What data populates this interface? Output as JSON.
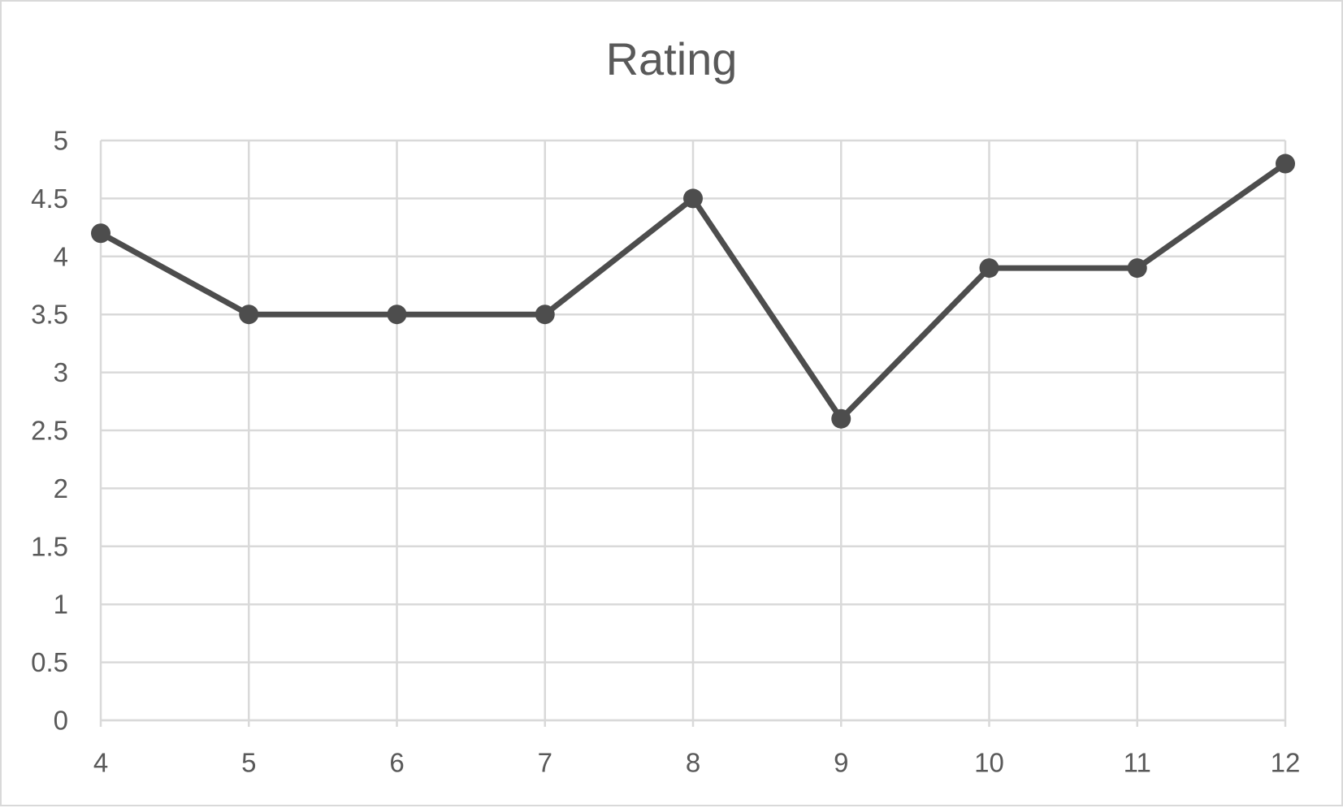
{
  "chart_data": {
    "type": "line",
    "title": "Rating",
    "xlabel": "",
    "ylabel": "",
    "x": [
      4,
      5,
      6,
      7,
      8,
      9,
      10,
      11,
      12
    ],
    "series": [
      {
        "values": [
          4.2,
          3.5,
          3.5,
          3.5,
          4.5,
          2.6,
          3.9,
          3.9,
          4.8
        ]
      }
    ],
    "xlim": [
      4,
      12
    ],
    "ylim": [
      0,
      5
    ],
    "x_ticks": [
      "4",
      "5",
      "6",
      "7",
      "8",
      "9",
      "10",
      "11",
      "12"
    ],
    "y_ticks": [
      "0",
      "0.5",
      "1",
      "1.5",
      "2",
      "2.5",
      "3",
      "3.5",
      "4",
      "4.5",
      "5"
    ],
    "grid": true,
    "legend": "none",
    "colors": {
      "series": "#4d4d4d",
      "grid": "#d9d9d9",
      "text": "#595959"
    }
  }
}
